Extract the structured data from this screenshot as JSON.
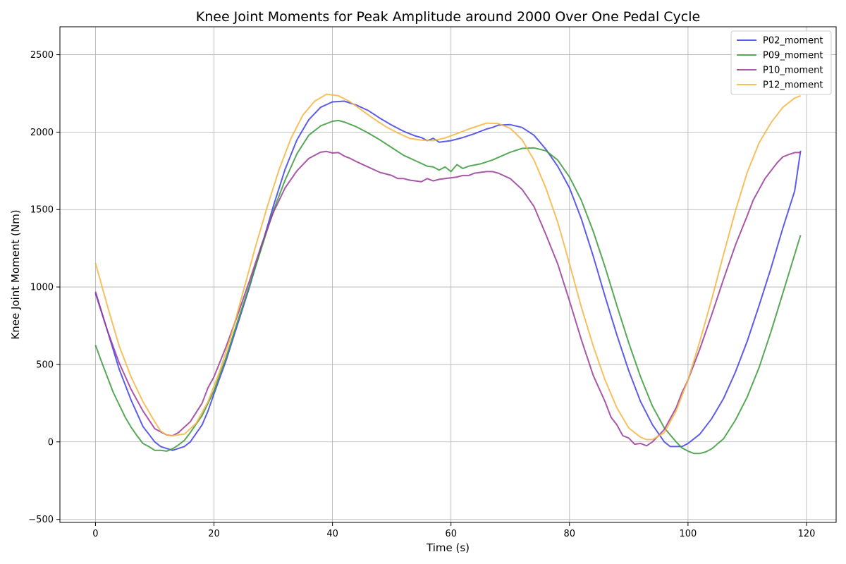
{
  "chart_data": {
    "type": "line",
    "title": "Knee Joint Moments for Peak Amplitude around 2000 Over One Pedal Cycle",
    "xlabel": "Time (s)",
    "ylabel": "Knee Joint Moment (Nm)",
    "xlim": [
      -6,
      125
    ],
    "ylim": [
      -520,
      2680
    ],
    "xticks": [
      0,
      20,
      40,
      60,
      80,
      100,
      120
    ],
    "yticks": [
      -500,
      0,
      500,
      1000,
      1500,
      2000,
      2500
    ],
    "grid": true,
    "legend_position": "top-right",
    "series": [
      {
        "name": "P02_moment",
        "color": "#4040e8",
        "points": [
          [
            0,
            960
          ],
          [
            2,
            720
          ],
          [
            4,
            470
          ],
          [
            6,
            270
          ],
          [
            8,
            100
          ],
          [
            10,
            0
          ],
          [
            11,
            -30
          ],
          [
            13,
            -55
          ],
          [
            15,
            -30
          ],
          [
            16,
            0
          ],
          [
            18,
            110
          ],
          [
            19,
            200
          ],
          [
            20,
            310
          ],
          [
            22,
            520
          ],
          [
            24,
            760
          ],
          [
            26,
            1000
          ],
          [
            28,
            1260
          ],
          [
            30,
            1520
          ],
          [
            32,
            1760
          ],
          [
            34,
            1950
          ],
          [
            36,
            2080
          ],
          [
            38,
            2160
          ],
          [
            40,
            2195
          ],
          [
            42,
            2200
          ],
          [
            44,
            2175
          ],
          [
            46,
            2140
          ],
          [
            48,
            2090
          ],
          [
            50,
            2045
          ],
          [
            52,
            2005
          ],
          [
            54,
            1975
          ],
          [
            55,
            1965
          ],
          [
            56,
            1945
          ],
          [
            57,
            1960
          ],
          [
            58,
            1935
          ],
          [
            60,
            1945
          ],
          [
            62,
            1965
          ],
          [
            64,
            1990
          ],
          [
            66,
            2020
          ],
          [
            67,
            2030
          ],
          [
            68,
            2045
          ],
          [
            70,
            2048
          ],
          [
            72,
            2030
          ],
          [
            74,
            1980
          ],
          [
            76,
            1890
          ],
          [
            78,
            1780
          ],
          [
            80,
            1640
          ],
          [
            82,
            1440
          ],
          [
            84,
            1200
          ],
          [
            86,
            940
          ],
          [
            88,
            690
          ],
          [
            90,
            460
          ],
          [
            92,
            260
          ],
          [
            94,
            110
          ],
          [
            96,
            0
          ],
          [
            97,
            -30
          ],
          [
            99,
            -30
          ],
          [
            100,
            -10
          ],
          [
            102,
            50
          ],
          [
            104,
            150
          ],
          [
            106,
            280
          ],
          [
            108,
            450
          ],
          [
            110,
            650
          ],
          [
            112,
            880
          ],
          [
            114,
            1120
          ],
          [
            116,
            1380
          ],
          [
            118,
            1620
          ],
          [
            119,
            1880
          ]
        ]
      },
      {
        "name": "P09_moment",
        "color": "#3a9a3a",
        "points": [
          [
            0,
            625
          ],
          [
            1,
            520
          ],
          [
            2,
            420
          ],
          [
            3,
            320
          ],
          [
            4,
            240
          ],
          [
            5,
            160
          ],
          [
            6,
            95
          ],
          [
            7,
            40
          ],
          [
            8,
            -10
          ],
          [
            9,
            -30
          ],
          [
            10,
            -55
          ],
          [
            11,
            -55
          ],
          [
            12,
            -60
          ],
          [
            13,
            -45
          ],
          [
            14,
            -20
          ],
          [
            15,
            10
          ],
          [
            16,
            60
          ],
          [
            18,
            170
          ],
          [
            20,
            330
          ],
          [
            22,
            540
          ],
          [
            24,
            780
          ],
          [
            26,
            1010
          ],
          [
            28,
            1250
          ],
          [
            30,
            1490
          ],
          [
            32,
            1690
          ],
          [
            34,
            1860
          ],
          [
            36,
            1980
          ],
          [
            38,
            2040
          ],
          [
            40,
            2070
          ],
          [
            41,
            2075
          ],
          [
            42,
            2065
          ],
          [
            44,
            2035
          ],
          [
            46,
            1995
          ],
          [
            48,
            1950
          ],
          [
            50,
            1900
          ],
          [
            52,
            1850
          ],
          [
            54,
            1815
          ],
          [
            56,
            1780
          ],
          [
            57,
            1775
          ],
          [
            58,
            1755
          ],
          [
            59,
            1775
          ],
          [
            60,
            1745
          ],
          [
            61,
            1790
          ],
          [
            62,
            1765
          ],
          [
            63,
            1780
          ],
          [
            65,
            1795
          ],
          [
            67,
            1820
          ],
          [
            70,
            1870
          ],
          [
            72,
            1895
          ],
          [
            74,
            1898
          ],
          [
            76,
            1880
          ],
          [
            78,
            1820
          ],
          [
            80,
            1710
          ],
          [
            82,
            1560
          ],
          [
            84,
            1360
          ],
          [
            86,
            1130
          ],
          [
            88,
            880
          ],
          [
            90,
            640
          ],
          [
            92,
            420
          ],
          [
            94,
            230
          ],
          [
            96,
            90
          ],
          [
            98,
            0
          ],
          [
            99,
            -40
          ],
          [
            100,
            -60
          ],
          [
            101,
            -75
          ],
          [
            102,
            -75
          ],
          [
            103,
            -65
          ],
          [
            104,
            -45
          ],
          [
            106,
            20
          ],
          [
            108,
            140
          ],
          [
            110,
            290
          ],
          [
            112,
            480
          ],
          [
            114,
            710
          ],
          [
            116,
            960
          ],
          [
            118,
            1210
          ],
          [
            119,
            1335
          ]
        ]
      },
      {
        "name": "P10_moment",
        "color": "#9a3a9a",
        "points": [
          [
            0,
            970
          ],
          [
            2,
            720
          ],
          [
            4,
            510
          ],
          [
            6,
            340
          ],
          [
            8,
            200
          ],
          [
            10,
            85
          ],
          [
            12,
            45
          ],
          [
            13,
            40
          ],
          [
            14,
            60
          ],
          [
            16,
            130
          ],
          [
            18,
            250
          ],
          [
            19,
            350
          ],
          [
            20,
            420
          ],
          [
            22,
            610
          ],
          [
            24,
            820
          ],
          [
            26,
            1040
          ],
          [
            28,
            1270
          ],
          [
            30,
            1480
          ],
          [
            32,
            1640
          ],
          [
            34,
            1750
          ],
          [
            36,
            1830
          ],
          [
            38,
            1870
          ],
          [
            39,
            1875
          ],
          [
            40,
            1865
          ],
          [
            41,
            1868
          ],
          [
            42,
            1845
          ],
          [
            43,
            1830
          ],
          [
            44,
            1810
          ],
          [
            46,
            1775
          ],
          [
            48,
            1740
          ],
          [
            50,
            1720
          ],
          [
            51,
            1700
          ],
          [
            52,
            1700
          ],
          [
            53,
            1690
          ],
          [
            55,
            1680
          ],
          [
            56,
            1700
          ],
          [
            57,
            1685
          ],
          [
            58,
            1695
          ],
          [
            60,
            1705
          ],
          [
            61,
            1710
          ],
          [
            62,
            1720
          ],
          [
            63,
            1720
          ],
          [
            64,
            1735
          ],
          [
            66,
            1745
          ],
          [
            67,
            1745
          ],
          [
            68,
            1735
          ],
          [
            70,
            1700
          ],
          [
            72,
            1630
          ],
          [
            74,
            1520
          ],
          [
            75,
            1430
          ],
          [
            76,
            1340
          ],
          [
            78,
            1150
          ],
          [
            80,
            910
          ],
          [
            82,
            660
          ],
          [
            84,
            430
          ],
          [
            86,
            260
          ],
          [
            87,
            160
          ],
          [
            88,
            110
          ],
          [
            89,
            40
          ],
          [
            90,
            25
          ],
          [
            91,
            -15
          ],
          [
            92,
            -10
          ],
          [
            93,
            -25
          ],
          [
            94,
            0
          ],
          [
            96,
            80
          ],
          [
            98,
            220
          ],
          [
            99,
            320
          ],
          [
            100,
            400
          ],
          [
            102,
            600
          ],
          [
            104,
            820
          ],
          [
            106,
            1050
          ],
          [
            108,
            1270
          ],
          [
            110,
            1460
          ],
          [
            111,
            1560
          ],
          [
            112,
            1630
          ],
          [
            113,
            1700
          ],
          [
            114,
            1750
          ],
          [
            115,
            1800
          ],
          [
            116,
            1840
          ],
          [
            117,
            1855
          ],
          [
            118,
            1868
          ],
          [
            119,
            1868
          ]
        ]
      },
      {
        "name": "P12_moment",
        "color": "#f5b541",
        "points": [
          [
            0,
            1155
          ],
          [
            2,
            880
          ],
          [
            4,
            620
          ],
          [
            6,
            420
          ],
          [
            8,
            260
          ],
          [
            10,
            130
          ],
          [
            11,
            70
          ],
          [
            12,
            45
          ],
          [
            13,
            40
          ],
          [
            15,
            50
          ],
          [
            17,
            120
          ],
          [
            19,
            260
          ],
          [
            21,
            460
          ],
          [
            23,
            700
          ],
          [
            25,
            980
          ],
          [
            27,
            1260
          ],
          [
            29,
            1520
          ],
          [
            31,
            1760
          ],
          [
            33,
            1960
          ],
          [
            35,
            2110
          ],
          [
            37,
            2200
          ],
          [
            39,
            2245
          ],
          [
            41,
            2235
          ],
          [
            43,
            2195
          ],
          [
            45,
            2140
          ],
          [
            47,
            2085
          ],
          [
            49,
            2035
          ],
          [
            51,
            1995
          ],
          [
            53,
            1960
          ],
          [
            55,
            1948
          ],
          [
            57,
            1945
          ],
          [
            59,
            1962
          ],
          [
            61,
            1990
          ],
          [
            63,
            2020
          ],
          [
            65,
            2045
          ],
          [
            66,
            2058
          ],
          [
            68,
            2055
          ],
          [
            70,
            2025
          ],
          [
            72,
            1950
          ],
          [
            74,
            1820
          ],
          [
            76,
            1640
          ],
          [
            78,
            1420
          ],
          [
            80,
            1150
          ],
          [
            82,
            870
          ],
          [
            84,
            620
          ],
          [
            86,
            400
          ],
          [
            88,
            220
          ],
          [
            90,
            90
          ],
          [
            92,
            30
          ],
          [
            93,
            15
          ],
          [
            94,
            15
          ],
          [
            96,
            60
          ],
          [
            98,
            200
          ],
          [
            100,
            400
          ],
          [
            102,
            650
          ],
          [
            104,
            920
          ],
          [
            106,
            1210
          ],
          [
            108,
            1490
          ],
          [
            110,
            1740
          ],
          [
            112,
            1930
          ],
          [
            114,
            2060
          ],
          [
            116,
            2160
          ],
          [
            118,
            2220
          ],
          [
            119,
            2235
          ]
        ]
      }
    ]
  }
}
